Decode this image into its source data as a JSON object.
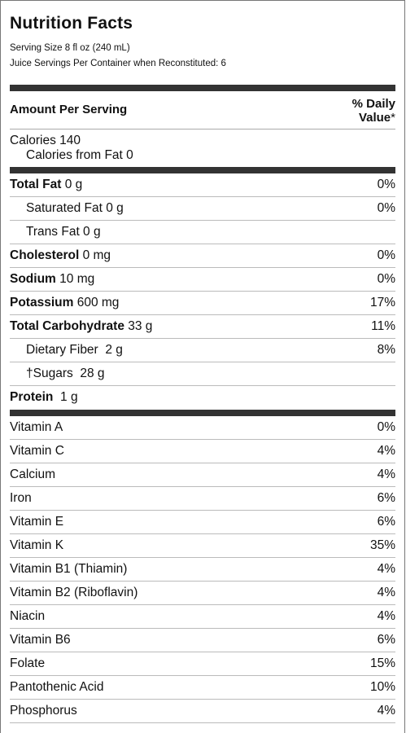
{
  "title": "Nutrition Facts",
  "serving_size": "Serving Size 8 fl oz (240 mL)",
  "servings_per_container": "Juice Servings Per Container when Reconstituted: 6",
  "amount_header": "Amount Per Serving",
  "daily_value_line1": "% Daily",
  "daily_value_line2": "Value",
  "daily_value_mark": "*",
  "calories": "Calories 140",
  "calories_from_fat": "Calories from Fat 0",
  "nutrients": [
    {
      "label": "Total Fat",
      "amount": " 0 g",
      "pct": "0%"
    },
    {
      "label": "Saturated Fat 0 g",
      "amount": "",
      "pct": "0%"
    },
    {
      "label": "Trans Fat 0 g",
      "amount": "",
      "pct": ""
    },
    {
      "label": "Cholesterol",
      "amount": " 0 mg",
      "pct": "0%"
    },
    {
      "label": "Sodium",
      "amount": " 10 mg",
      "pct": "0%"
    },
    {
      "label": "Potassium",
      "amount": " 600 mg",
      "pct": "17%"
    },
    {
      "label": "Total Carbohydrate",
      "amount": " 33 g",
      "pct": "11%"
    },
    {
      "label": "Dietary Fiber  2 g",
      "amount": "",
      "pct": "8%"
    },
    {
      "label": "†Sugars  28 g",
      "amount": "",
      "pct": ""
    },
    {
      "label": "Protein",
      "amount": "  1 g",
      "pct": ""
    }
  ],
  "vitamins": [
    {
      "label": "Vitamin A",
      "pct": "0%"
    },
    {
      "label": "Vitamin C",
      "pct": "4%"
    },
    {
      "label": "Calcium",
      "pct": "4%"
    },
    {
      "label": "Iron",
      "pct": "6%"
    },
    {
      "label": "Vitamin E",
      "pct": "6%"
    },
    {
      "label": "Vitamin K",
      "pct": "35%"
    },
    {
      "label": "Vitamin B1 (Thiamin)",
      "pct": "4%"
    },
    {
      "label": "Vitamin B2 (Riboflavin)",
      "pct": "4%"
    },
    {
      "label": "Niacin",
      "pct": "4%"
    },
    {
      "label": "Vitamin B6",
      "pct": "6%"
    },
    {
      "label": "Folate",
      "pct": "15%"
    },
    {
      "label": "Pantothenic Acid",
      "pct": "10%"
    },
    {
      "label": "Phosphorus",
      "pct": "4%"
    }
  ]
}
